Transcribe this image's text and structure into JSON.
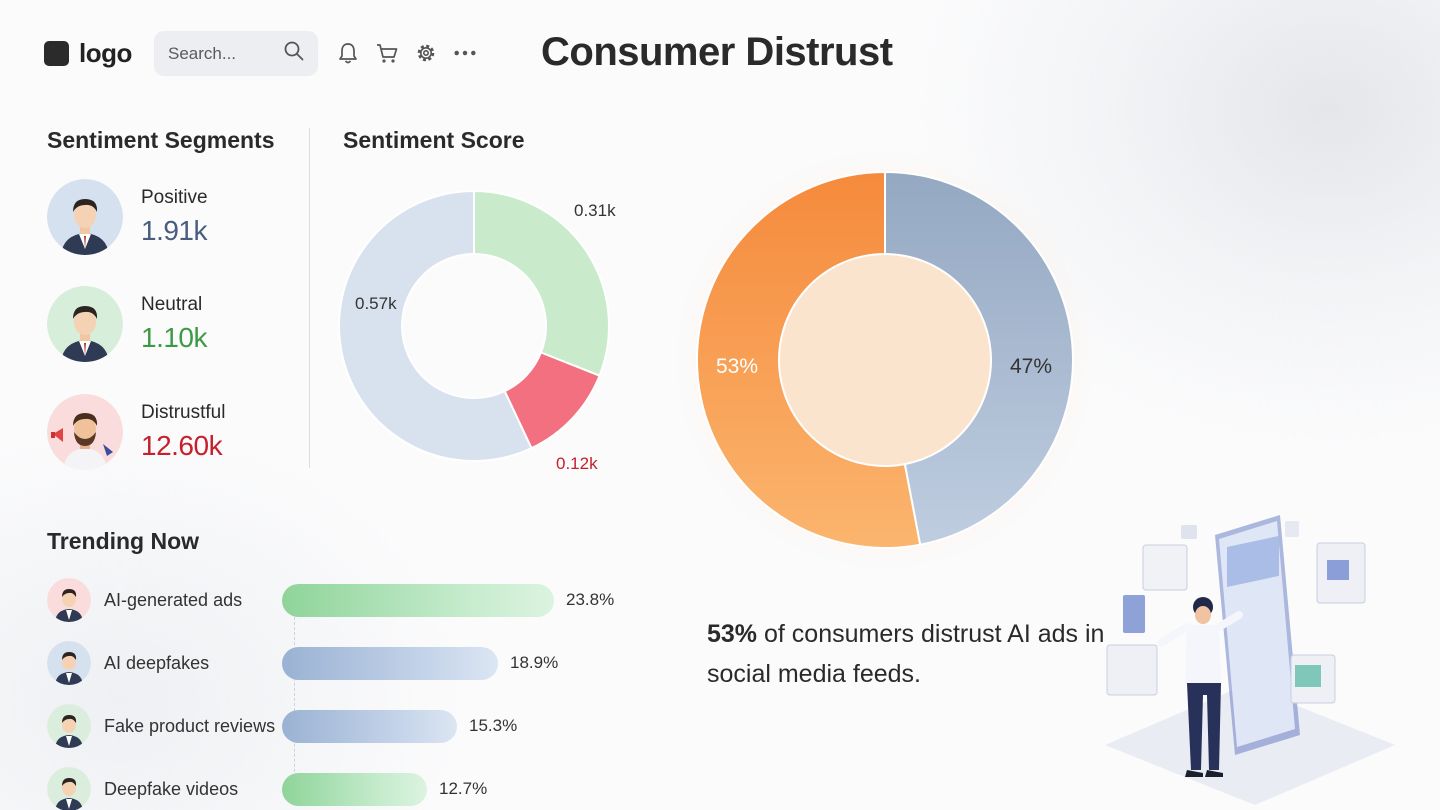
{
  "header": {
    "logo_text": "logo",
    "search_placeholder": "Search...",
    "page_title": "Consumer Distrust",
    "icons": [
      "bell-icon",
      "cart-icon",
      "gear-icon",
      "more-icon"
    ]
  },
  "segments": {
    "title": "Sentiment Segments",
    "items": [
      {
        "label": "Positive",
        "value": "1.91k",
        "color": "#4a5d7e",
        "avatar_bg": "#d6e1ef"
      },
      {
        "label": "Neutral",
        "value": "1.10k",
        "color": "#3d9a45",
        "avatar_bg": "#d6eeda"
      },
      {
        "label": "Distrustful",
        "value": "12.60k",
        "color": "#c5202c",
        "avatar_bg": "#fbdcdc"
      }
    ]
  },
  "sentiment_score": {
    "title": "Sentiment Score",
    "labels": {
      "positive": "0.31k",
      "negative": "0.12k",
      "neutral": "0.57k"
    }
  },
  "distrust_split": {
    "labels": {
      "left": "53%",
      "right": "47%"
    }
  },
  "stat": {
    "highlight": "53%",
    "text": " of consumers distrust AI ads in social media feeds."
  },
  "trending": {
    "title": "Trending Now",
    "items": [
      {
        "label": "AI-generated ads",
        "pct": "23.8%",
        "value": 23.8,
        "color": "green",
        "avatar_bg": "#fbdcdc"
      },
      {
        "label": "AI deepfakes",
        "pct": "18.9%",
        "value": 18.9,
        "color": "blue",
        "avatar_bg": "#d6e1ef"
      },
      {
        "label": "Fake product reviews",
        "pct": "15.3%",
        "value": 15.3,
        "color": "blue",
        "avatar_bg": "#dbeedd"
      },
      {
        "label": "Deepfake videos",
        "pct": "12.7%",
        "value": 12.7,
        "color": "green",
        "avatar_bg": "#dbeedd"
      }
    ]
  },
  "chart_data": [
    {
      "type": "pie",
      "title": "Sentiment Score",
      "categories": [
        "",
        "",
        ""
      ],
      "values": [
        0.31,
        0.12,
        0.57
      ],
      "unit": "k",
      "labels": [
        "0.31k",
        "0.12k",
        "0.57k"
      ],
      "colors": [
        "#c9ebcc",
        "#f2707f",
        "#d8e2ee"
      ]
    },
    {
      "type": "pie",
      "title": "",
      "categories": [
        "",
        ""
      ],
      "values": [
        53,
        47
      ],
      "unit": "%",
      "labels": [
        "53%",
        "47%"
      ],
      "colors": [
        "#f6944a",
        "#a9b9cd"
      ]
    },
    {
      "type": "bar",
      "title": "Trending Now",
      "categories": [
        "AI-generated ads",
        "AI deepfakes",
        "Fake product reviews",
        "Deepfake videos"
      ],
      "values": [
        23.8,
        18.9,
        15.3,
        12.7
      ],
      "unit": "%"
    }
  ]
}
